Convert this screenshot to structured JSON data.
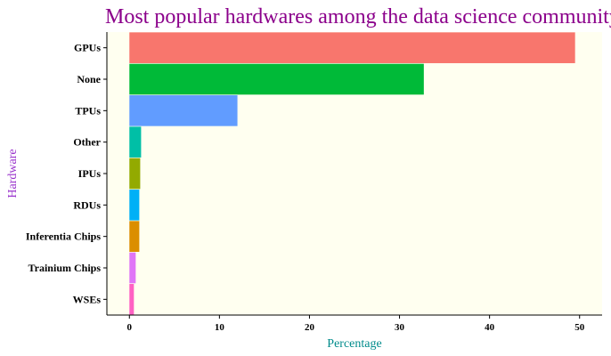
{
  "chart_data": {
    "type": "bar",
    "orientation": "horizontal",
    "title": "Most popular hardwares among the data science community",
    "xlabel": "Percentage",
    "ylabel": "Hardware",
    "categories": [
      "GPUs",
      "None",
      "TPUs",
      "Other",
      "IPUs",
      "RDUs",
      "Inferentia Chips",
      "Trainium Chips",
      "WSEs"
    ],
    "values": [
      49.5,
      32.7,
      12.0,
      1.3,
      1.2,
      1.1,
      1.1,
      0.7,
      0.5
    ],
    "colors": [
      "#F8766D",
      "#00BA38",
      "#619CFF",
      "#00BFA6",
      "#93AA00",
      "#00B0F6",
      "#DB8E00",
      "#E076F7",
      "#FF61C3"
    ],
    "xlim": [
      -2.5,
      52.5
    ],
    "xticks": [
      0,
      10,
      20,
      30,
      40,
      50
    ],
    "grid": false,
    "legend": "none",
    "panel_background": "#FFFFF0",
    "title_color": "#8B008B",
    "xlabel_color": "#008B8B",
    "ylabel_color": "#9932CC"
  }
}
